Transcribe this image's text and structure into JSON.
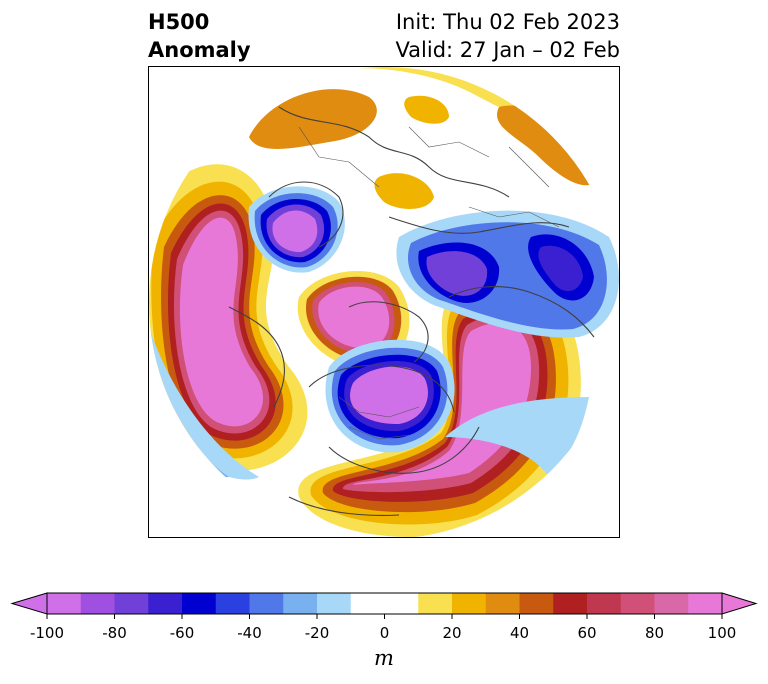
{
  "title": {
    "left_line1": "H500",
    "left_line2": "Anomaly",
    "right_line1": "Init: Thu 02 Feb 2023",
    "right_line2": "Valid: 27 Jan – 02 Feb"
  },
  "colorbar": {
    "unit": "m",
    "ticks": [
      "-100",
      "-80",
      "-60",
      "-40",
      "-20",
      "0",
      "20",
      "40",
      "60",
      "80",
      "100"
    ],
    "levels": [
      -100,
      -90,
      -80,
      -70,
      -60,
      -50,
      -40,
      -30,
      -20,
      -10,
      10,
      20,
      30,
      40,
      50,
      60,
      70,
      80,
      90,
      100
    ],
    "colors": [
      "#d070e8",
      "#a050e0",
      "#7040d8",
      "#3a20d0",
      "#0000d0",
      "#2a40e0",
      "#5078e8",
      "#78b0f0",
      "#a8d8f8",
      "#ffffff",
      "#f8e050",
      "#f0b400",
      "#e08c10",
      "#c85a10",
      "#b02020",
      "#c03850",
      "#d05078",
      "#d868a8",
      "#e878d8"
    ],
    "extend_low_color": "#d070e8",
    "extend_high_color": "#e878d8"
  },
  "map": {
    "projection": "north polar stereographic",
    "anomaly_features": [
      {
        "sign": "positive",
        "label": "ridge west of Europe / North Atlantic"
      },
      {
        "sign": "positive",
        "label": "ridge over North Pacific / Alaska"
      },
      {
        "sign": "positive",
        "label": "ridge over eastern Asia"
      },
      {
        "sign": "positive",
        "label": "ridge over eastern US / western Atlantic"
      },
      {
        "sign": "negative",
        "label": "trough over Canada / Hudson Bay"
      },
      {
        "sign": "negative",
        "label": "trough over eastern Europe / western Russia"
      },
      {
        "sign": "negative",
        "label": "trough over central Asia"
      }
    ]
  }
}
